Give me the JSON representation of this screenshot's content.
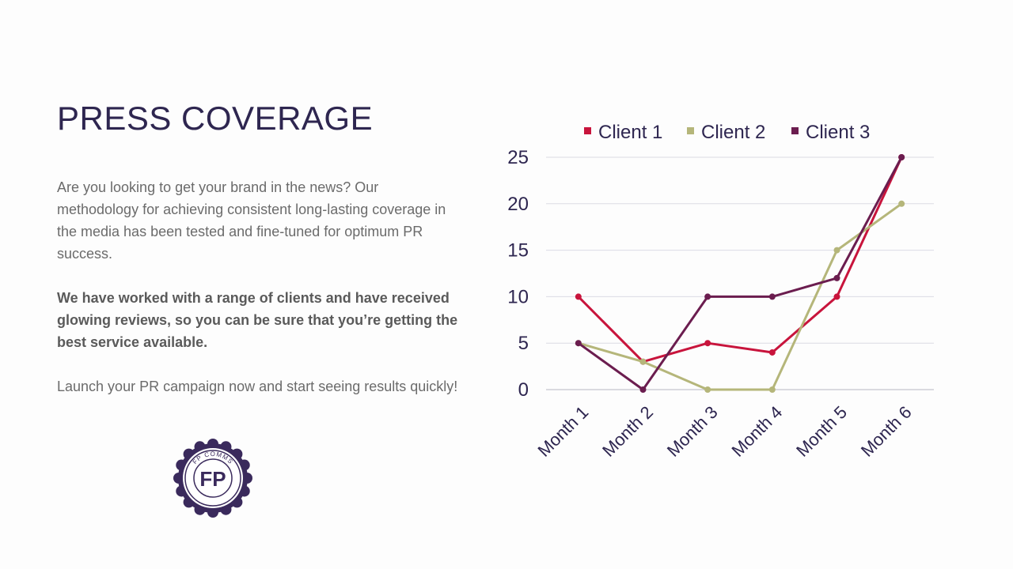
{
  "heading": "PRESS COVERAGE",
  "paragraphs": {
    "intro": "Are you looking to get your brand in the news? Our methodology for achieving consistent long-lasting coverage in the media has been tested and fine-tuned for optimum PR success.",
    "highlight": "We have worked with a range of clients and have received glowing reviews, so you can be sure that you’re getting the best service available.",
    "cta": "Launch your PR campaign now and start seeing results quickly!"
  },
  "logo": {
    "text": "FP COMMS",
    "monogram": "FP",
    "color": "#3a2a5c"
  },
  "chart_data": {
    "type": "line",
    "title": "",
    "xlabel": "",
    "ylabel": "",
    "categories": [
      "Month 1",
      "Month 2",
      "Month 3",
      "Month 4",
      "Month 5",
      "Month 6"
    ],
    "ylim": [
      0,
      25
    ],
    "yticks": [
      0,
      5,
      10,
      15,
      20,
      25
    ],
    "grid": true,
    "legend_position": "top",
    "series": [
      {
        "name": "Client 1",
        "color": "#c8143c",
        "values": [
          10,
          3,
          5,
          4,
          10,
          25
        ]
      },
      {
        "name": "Client 2",
        "color": "#b5b67a",
        "values": [
          5,
          3,
          0,
          0,
          15,
          20
        ]
      },
      {
        "name": "Client 3",
        "color": "#6b1d4f",
        "values": [
          5,
          0,
          10,
          10,
          12,
          25
        ]
      }
    ]
  }
}
